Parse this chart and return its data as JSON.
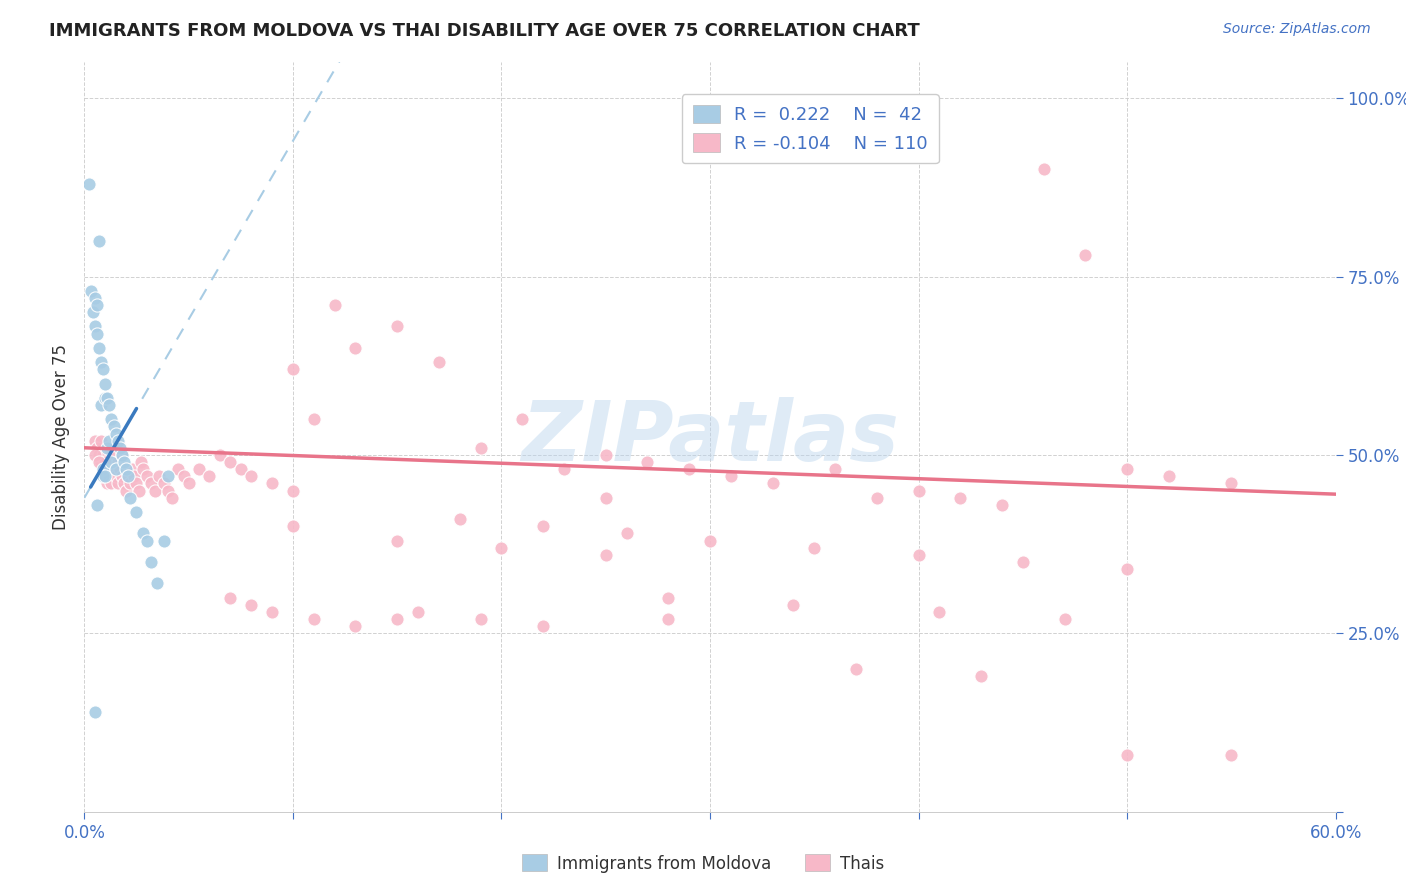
{
  "title": "IMMIGRANTS FROM MOLDOVA VS THAI DISABILITY AGE OVER 75 CORRELATION CHART",
  "source": "Source: ZipAtlas.com",
  "ylabel": "Disability Age Over 75",
  "xlim": [
    0.0,
    0.6
  ],
  "ylim": [
    0.0,
    1.05
  ],
  "color_moldova": "#a8cce4",
  "color_thai": "#f7b8c8",
  "trendline_moldova_color": "#3a7abf",
  "trendline_thai_color": "#e8748a",
  "trendline_dashed_color": "#a8cce4",
  "watermark": "ZIPatlas",
  "moldova_x": [
    0.002,
    0.003,
    0.004,
    0.005,
    0.005,
    0.006,
    0.006,
    0.007,
    0.007,
    0.008,
    0.008,
    0.009,
    0.009,
    0.009,
    0.01,
    0.01,
    0.01,
    0.011,
    0.011,
    0.012,
    0.012,
    0.013,
    0.013,
    0.014,
    0.015,
    0.015,
    0.016,
    0.017,
    0.018,
    0.019,
    0.02,
    0.021,
    0.022,
    0.025,
    0.028,
    0.03,
    0.032,
    0.035,
    0.038,
    0.04,
    0.006,
    0.005
  ],
  "moldova_y": [
    0.88,
    0.73,
    0.7,
    0.68,
    0.72,
    0.67,
    0.71,
    0.65,
    0.8,
    0.63,
    0.57,
    0.62,
    0.48,
    0.47,
    0.6,
    0.58,
    0.47,
    0.58,
    0.51,
    0.57,
    0.52,
    0.55,
    0.49,
    0.54,
    0.53,
    0.48,
    0.52,
    0.51,
    0.5,
    0.49,
    0.48,
    0.47,
    0.44,
    0.42,
    0.39,
    0.38,
    0.35,
    0.32,
    0.38,
    0.47,
    0.43,
    0.14
  ],
  "thai_x": [
    0.005,
    0.006,
    0.007,
    0.008,
    0.008,
    0.009,
    0.009,
    0.01,
    0.01,
    0.011,
    0.011,
    0.012,
    0.012,
    0.013,
    0.013,
    0.014,
    0.015,
    0.015,
    0.016,
    0.016,
    0.017,
    0.018,
    0.018,
    0.019,
    0.02,
    0.02,
    0.021,
    0.022,
    0.023,
    0.024,
    0.025,
    0.026,
    0.027,
    0.028,
    0.03,
    0.032,
    0.034,
    0.036,
    0.038,
    0.04,
    0.042,
    0.045,
    0.048,
    0.05,
    0.055,
    0.06,
    0.065,
    0.07,
    0.075,
    0.08,
    0.09,
    0.1,
    0.11,
    0.12,
    0.13,
    0.15,
    0.17,
    0.19,
    0.21,
    0.23,
    0.25,
    0.27,
    0.29,
    0.31,
    0.33,
    0.36,
    0.38,
    0.4,
    0.42,
    0.44,
    0.46,
    0.48,
    0.5,
    0.52,
    0.55,
    0.18,
    0.22,
    0.26,
    0.3,
    0.35,
    0.4,
    0.45,
    0.5,
    0.1,
    0.15,
    0.2,
    0.25,
    0.07,
    0.08,
    0.09,
    0.11,
    0.13,
    0.16,
    0.19,
    0.22,
    0.28,
    0.34,
    0.41,
    0.47,
    0.37,
    0.43,
    0.28,
    0.15,
    0.1,
    0.25,
    0.5,
    0.55,
    0.005,
    0.007
  ],
  "thai_y": [
    0.52,
    0.51,
    0.5,
    0.49,
    0.52,
    0.48,
    0.5,
    0.47,
    0.49,
    0.46,
    0.48,
    0.47,
    0.51,
    0.46,
    0.49,
    0.48,
    0.47,
    0.5,
    0.46,
    0.49,
    0.48,
    0.47,
    0.5,
    0.46,
    0.45,
    0.48,
    0.47,
    0.46,
    0.48,
    0.47,
    0.46,
    0.45,
    0.49,
    0.48,
    0.47,
    0.46,
    0.45,
    0.47,
    0.46,
    0.45,
    0.44,
    0.48,
    0.47,
    0.46,
    0.48,
    0.47,
    0.5,
    0.49,
    0.48,
    0.47,
    0.46,
    0.62,
    0.55,
    0.71,
    0.65,
    0.68,
    0.63,
    0.51,
    0.55,
    0.48,
    0.5,
    0.49,
    0.48,
    0.47,
    0.46,
    0.48,
    0.44,
    0.45,
    0.44,
    0.43,
    0.9,
    0.78,
    0.48,
    0.47,
    0.46,
    0.41,
    0.4,
    0.39,
    0.38,
    0.37,
    0.36,
    0.35,
    0.34,
    0.4,
    0.38,
    0.37,
    0.36,
    0.3,
    0.29,
    0.28,
    0.27,
    0.26,
    0.28,
    0.27,
    0.26,
    0.3,
    0.29,
    0.28,
    0.27,
    0.2,
    0.19,
    0.27,
    0.27,
    0.45,
    0.44,
    0.08,
    0.08,
    0.5,
    0.49
  ],
  "mol_trend_x": [
    0.003,
    0.025
  ],
  "mol_trend_y": [
    0.455,
    0.565
  ],
  "thai_trend_x": [
    0.0,
    0.6
  ],
  "thai_trend_y": [
    0.51,
    0.445
  ]
}
